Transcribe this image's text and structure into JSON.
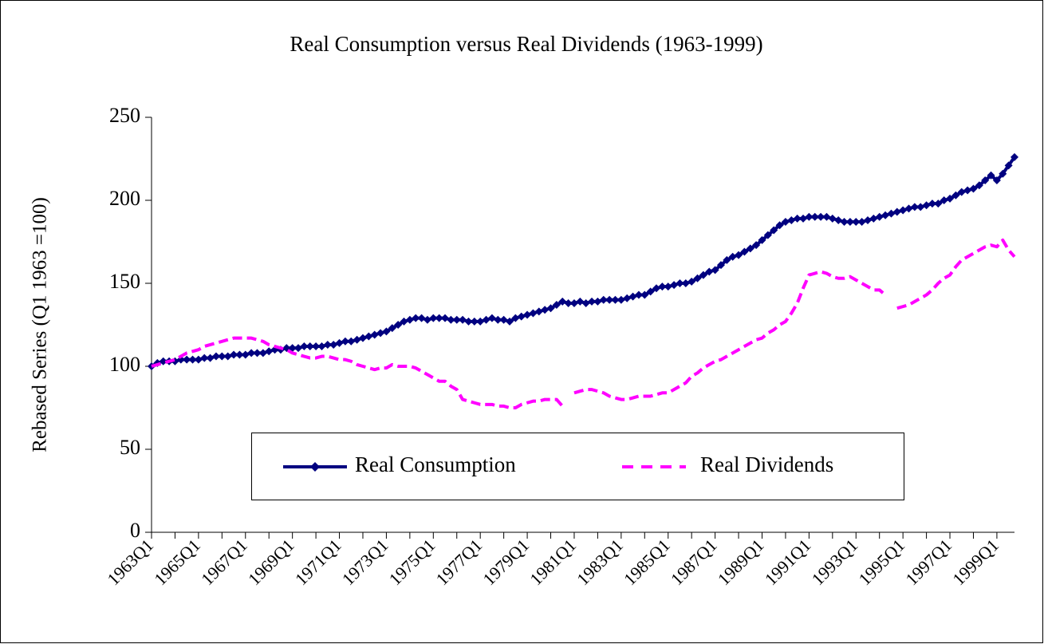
{
  "chart_data": {
    "type": "line",
    "title": "Real Consumption versus Real Dividends (1963-1999)",
    "y_label": "Rebased Series (Q1 1963 =100)",
    "categories": [
      "1963Q1",
      null,
      null,
      null,
      null,
      null,
      null,
      null,
      "1965Q1",
      null,
      null,
      null,
      null,
      null,
      null,
      null,
      "1967Q1",
      null,
      null,
      null,
      null,
      null,
      null,
      null,
      "1969Q1",
      null,
      null,
      null,
      null,
      null,
      null,
      null,
      "1971Q1",
      null,
      null,
      null,
      null,
      null,
      null,
      null,
      "1973Q1",
      null,
      null,
      null,
      null,
      null,
      null,
      null,
      "1975Q1",
      null,
      null,
      null,
      null,
      null,
      null,
      null,
      "1977Q1",
      null,
      null,
      null,
      null,
      null,
      null,
      null,
      "1979Q1",
      null,
      null,
      null,
      null,
      null,
      null,
      null,
      "1981Q1",
      null,
      null,
      null,
      null,
      null,
      null,
      null,
      "1983Q1",
      null,
      null,
      null,
      null,
      null,
      null,
      null,
      "1985Q1",
      null,
      null,
      null,
      null,
      null,
      null,
      null,
      "1987Q1",
      null,
      null,
      null,
      null,
      null,
      null,
      null,
      "1989Q1",
      null,
      null,
      null,
      null,
      null,
      null,
      null,
      "1991Q1",
      null,
      null,
      null,
      null,
      null,
      null,
      null,
      "1993Q1",
      null,
      null,
      null,
      null,
      null,
      null,
      null,
      "1995Q1",
      null,
      null,
      null,
      null,
      null,
      null,
      null,
      "1997Q1",
      null,
      null,
      null,
      null,
      null,
      null,
      null,
      "1999Q1",
      null,
      null,
      null
    ],
    "series": [
      {
        "name": "Real Consumption",
        "color": "#000080",
        "style": "solid",
        "marker": "diamond",
        "values": [
          100,
          102,
          103,
          103,
          103,
          104,
          104,
          104,
          104,
          105,
          105,
          106,
          106,
          106,
          107,
          107,
          107,
          108,
          108,
          108,
          109,
          110,
          110,
          111,
          111,
          111,
          112,
          112,
          112,
          112,
          113,
          113,
          114,
          115,
          115,
          116,
          117,
          118,
          119,
          120,
          121,
          123,
          125,
          127,
          128,
          129,
          129,
          128,
          129,
          129,
          129,
          128,
          128,
          128,
          127,
          127,
          127,
          128,
          129,
          128,
          128,
          127,
          129,
          130,
          131,
          132,
          133,
          134,
          135,
          137,
          139,
          138,
          138,
          139,
          138,
          139,
          139,
          140,
          140,
          140,
          140,
          141,
          142,
          143,
          143,
          145,
          147,
          148,
          148,
          149,
          150,
          150,
          151,
          153,
          155,
          157,
          158,
          161,
          164,
          166,
          167,
          169,
          171,
          173,
          176,
          179,
          182,
          185,
          187,
          188,
          189,
          189,
          190,
          190,
          190,
          190,
          189,
          188,
          187,
          187,
          187,
          187,
          188,
          189,
          190,
          191,
          192,
          193,
          194,
          195,
          196,
          196,
          197,
          198,
          198,
          200,
          201,
          203,
          205,
          206,
          207,
          209,
          212,
          215,
          212,
          216,
          221,
          226
        ]
      },
      {
        "name": "Real Dividends",
        "color": "#ff00ff",
        "style": "dashed",
        "values": [
          100,
          101,
          102,
          103,
          104,
          106,
          108,
          109,
          110,
          112,
          113,
          114,
          115,
          116,
          117,
          117,
          117,
          117,
          116,
          115,
          113,
          112,
          111,
          110,
          108,
          107,
          106,
          105,
          105,
          106,
          106,
          105,
          104,
          104,
          103,
          101,
          100,
          99,
          98,
          99,
          99,
          101,
          100,
          100,
          100,
          99,
          97,
          95,
          93,
          91,
          91,
          88,
          86,
          80,
          79,
          78,
          77,
          77,
          77,
          76,
          76,
          75,
          75,
          77,
          78,
          79,
          79,
          80,
          80,
          80,
          76,
          null,
          84,
          85,
          86,
          86,
          85,
          84,
          82,
          81,
          80,
          80,
          81,
          82,
          82,
          82,
          83,
          84,
          84,
          86,
          88,
          90,
          94,
          96,
          99,
          101,
          103,
          104,
          106,
          108,
          110,
          112,
          114,
          116,
          117,
          120,
          122,
          125,
          127,
          132,
          138,
          147,
          155,
          156,
          157,
          156,
          154,
          153,
          153,
          154,
          152,
          150,
          148,
          146,
          146,
          143,
          null,
          135,
          136,
          137,
          139,
          141,
          143,
          146,
          150,
          153,
          155,
          160,
          164,
          166,
          168,
          170,
          172,
          173,
          172,
          176,
          170,
          166
        ]
      }
    ],
    "ylim": [
      0,
      250
    ],
    "yticks": [
      0,
      50,
      100,
      150,
      200,
      250
    ],
    "grid": false,
    "legend": "bottom"
  }
}
